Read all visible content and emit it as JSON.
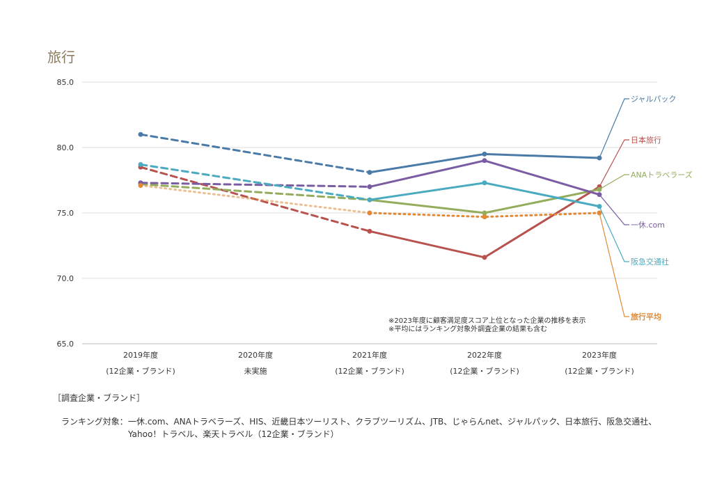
{
  "title": "旅行",
  "notes": [
    "※2023年度に顧客満足度スコア上位となった企業の推移を表示",
    "※平均にはランキング対象外調査企業の結果も含む"
  ],
  "footer": {
    "bracket_label": "［調査企業・ブランド］",
    "ranking_label": "ランキング対象：",
    "ranking_text": "一休.com、ANAトラベラーズ、HIS、近畿日本ツーリスト、クラブツーリズム、JTB、じゃらんnet、ジャルパック、日本旅行、阪急交通社、Yahoo！トラベル、楽天トラベル（12企業・ブランド）"
  },
  "chart_data": {
    "type": "line",
    "title": "旅行",
    "ylim": [
      65,
      85
    ],
    "yticks": [
      "65.0",
      "70.0",
      "75.0",
      "80.0",
      "85.0"
    ],
    "categories": [
      "2019年度",
      "2020年度",
      "2021年度",
      "2022年度",
      "2023年度"
    ],
    "category_subs": [
      "(12企業・ブランド)",
      "未実施",
      "(12企業・ブランド)",
      "(12企業・ブランド)",
      "(12企業・ブランド)"
    ],
    "series": [
      {
        "name": "ジャルパック",
        "color": "#4a7aa8",
        "values": [
          81.0,
          null,
          78.1,
          79.5,
          79.2
        ]
      },
      {
        "name": "日本旅行",
        "color": "#b8524d",
        "values": [
          78.5,
          null,
          73.6,
          71.6,
          77.0
        ]
      },
      {
        "name": "ANAトラベラーズ",
        "color": "#93ad5c",
        "values": [
          77.2,
          null,
          76.0,
          75.0,
          76.8
        ]
      },
      {
        "name": "一休.com",
        "color": "#7a5ca3",
        "values": [
          77.3,
          null,
          77.0,
          79.0,
          76.4
        ]
      },
      {
        "name": "阪急交通社",
        "color": "#4aaabf",
        "values": [
          78.7,
          null,
          76.0,
          77.3,
          75.5
        ]
      },
      {
        "name": "旅行平均",
        "color": "#e08a38",
        "values": [
          77.1,
          null,
          75.0,
          74.7,
          75.0
        ]
      }
    ]
  }
}
